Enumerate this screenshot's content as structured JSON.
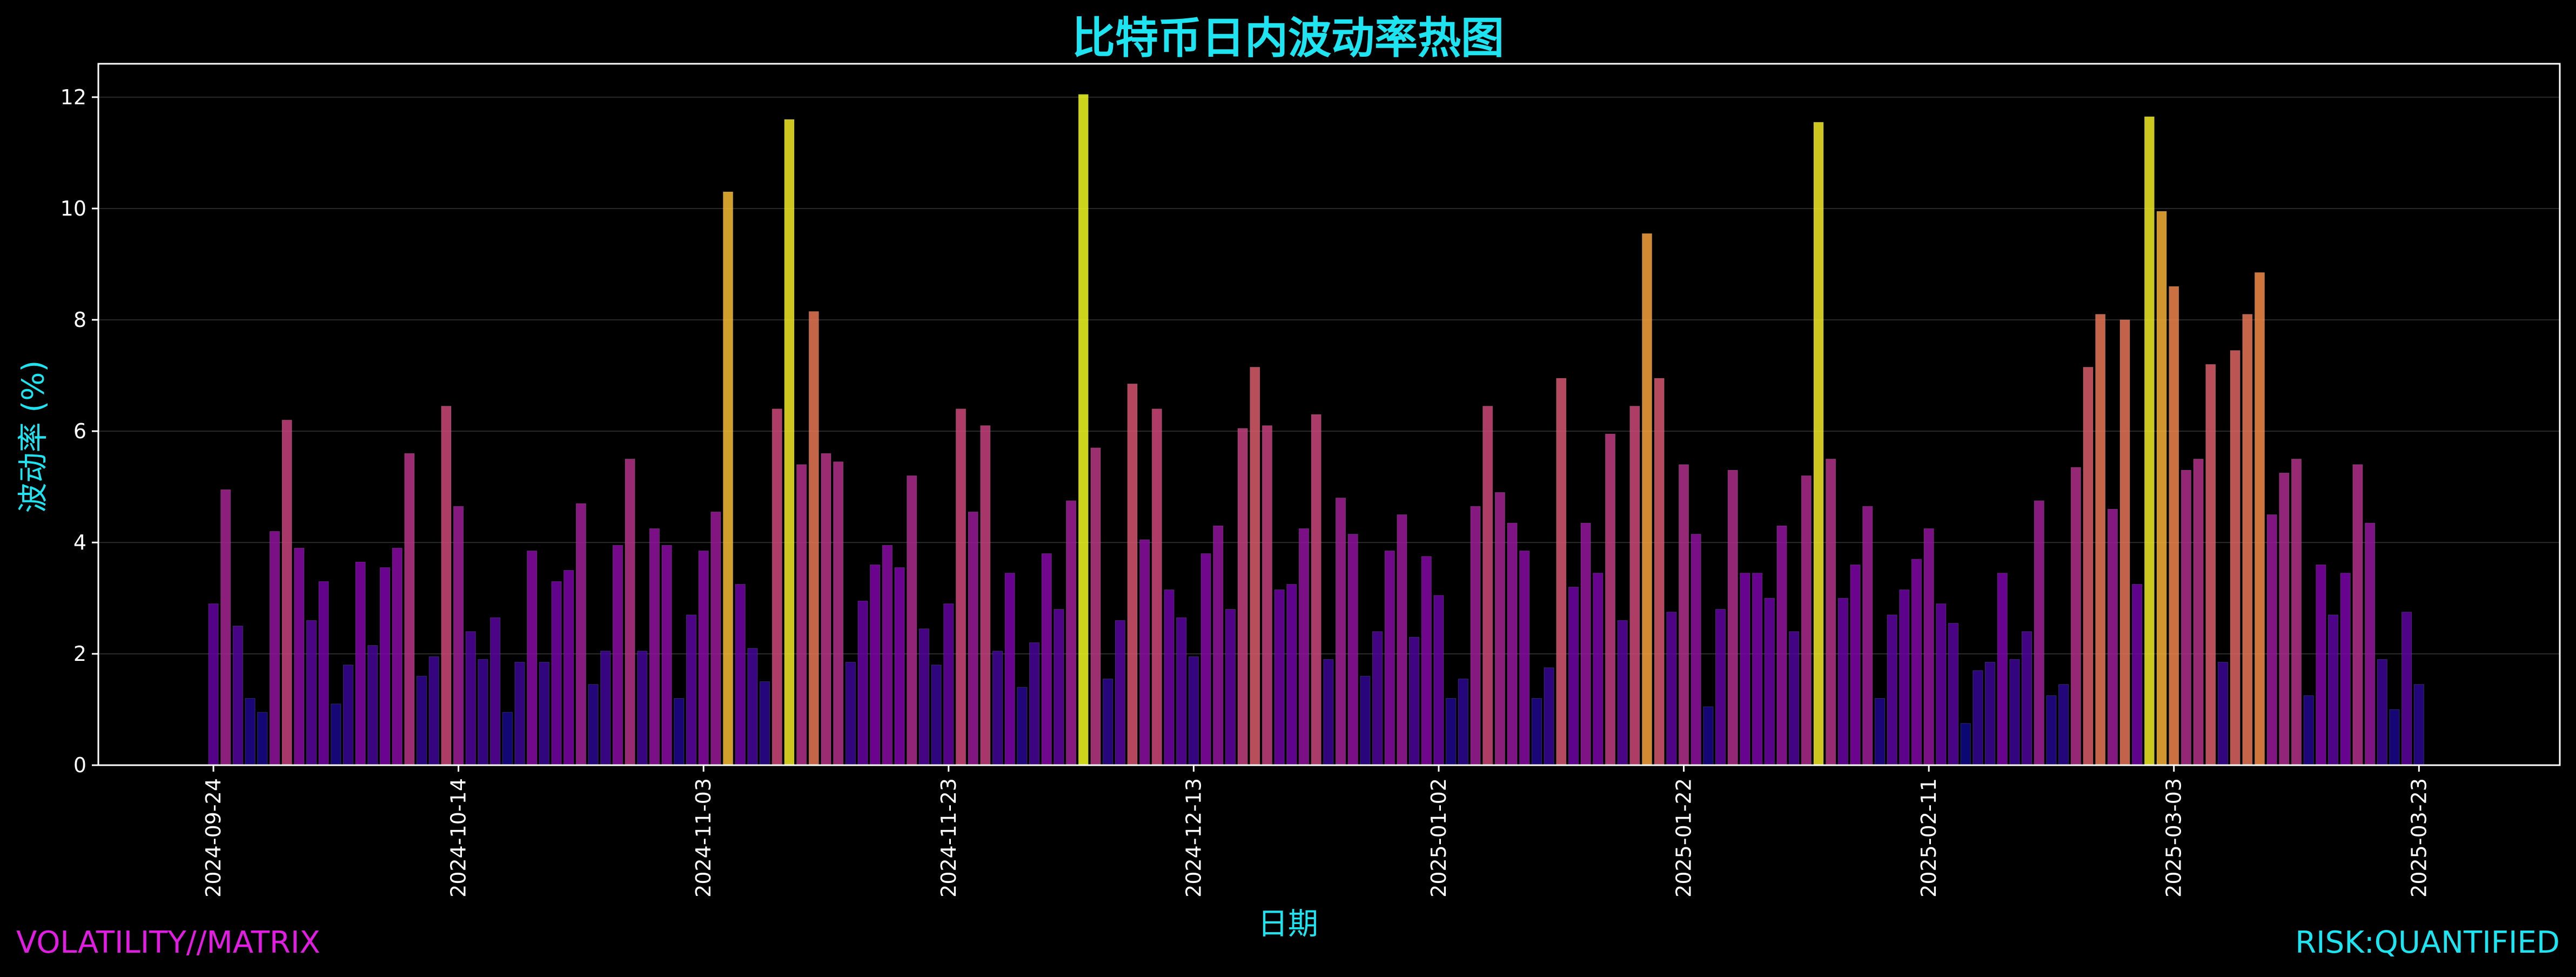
{
  "chart_data": {
    "type": "bar",
    "title": "比特币日内波动率热图",
    "xlabel": "日期",
    "ylabel": "波动率 (%)",
    "ylim": [
      0,
      12.6
    ],
    "yticks": [
      0,
      2,
      4,
      6,
      8,
      10,
      12
    ],
    "xtick_labels": [
      "2024-09-24",
      "2024-10-14",
      "2024-11-03",
      "2024-11-23",
      "2024-12-13",
      "2025-01-02",
      "2025-01-22",
      "2025-02-11",
      "2025-03-03",
      "2025-03-23"
    ],
    "x_start": "2024-09-24",
    "x_end": "2025-03-24",
    "grid": true,
    "colormap": "plasma",
    "categories": [
      "2024-09-24",
      "2024-09-25",
      "2024-09-26",
      "2024-09-27",
      "2024-09-28",
      "2024-09-29",
      "2024-09-30",
      "2024-10-01",
      "2024-10-02",
      "2024-10-03",
      "2024-10-04",
      "2024-10-05",
      "2024-10-06",
      "2024-10-07",
      "2024-10-08",
      "2024-10-09",
      "2024-10-10",
      "2024-10-11",
      "2024-10-12",
      "2024-10-13",
      "2024-10-14",
      "2024-10-15",
      "2024-10-16",
      "2024-10-17",
      "2024-10-18",
      "2024-10-19",
      "2024-10-20",
      "2024-10-21",
      "2024-10-22",
      "2024-10-23",
      "2024-10-24",
      "2024-10-25",
      "2024-10-26",
      "2024-10-27",
      "2024-10-28",
      "2024-10-29",
      "2024-10-30",
      "2024-10-31",
      "2024-11-01",
      "2024-11-02",
      "2024-11-03",
      "2024-11-04",
      "2024-11-05",
      "2024-11-06",
      "2024-11-07",
      "2024-11-08",
      "2024-11-09",
      "2024-11-10",
      "2024-11-11",
      "2024-11-12",
      "2024-11-13",
      "2024-11-14",
      "2024-11-15",
      "2024-11-16",
      "2024-11-17",
      "2024-11-18",
      "2024-11-19",
      "2024-11-20",
      "2024-11-21",
      "2024-11-22",
      "2024-11-23",
      "2024-11-24",
      "2024-11-25",
      "2024-11-26",
      "2024-11-27",
      "2024-11-28",
      "2024-11-29",
      "2024-11-30",
      "2024-12-01",
      "2024-12-02",
      "2024-12-03",
      "2024-12-04",
      "2024-12-05",
      "2024-12-06",
      "2024-12-07",
      "2024-12-08",
      "2024-12-09",
      "2024-12-10",
      "2024-12-11",
      "2024-12-12",
      "2024-12-13",
      "2024-12-14",
      "2024-12-15",
      "2024-12-16",
      "2024-12-17",
      "2024-12-18",
      "2024-12-19",
      "2024-12-20",
      "2024-12-21",
      "2024-12-22",
      "2024-12-23",
      "2024-12-24",
      "2024-12-25",
      "2024-12-26",
      "2024-12-27",
      "2024-12-28",
      "2024-12-29",
      "2024-12-30",
      "2024-12-31",
      "2025-01-01",
      "2025-01-02",
      "2025-01-03",
      "2025-01-04",
      "2025-01-05",
      "2025-01-06",
      "2025-01-07",
      "2025-01-08",
      "2025-01-09",
      "2025-01-10",
      "2025-01-11",
      "2025-01-12",
      "2025-01-13",
      "2025-01-14",
      "2025-01-15",
      "2025-01-16",
      "2025-01-17",
      "2025-01-18",
      "2025-01-19",
      "2025-01-20",
      "2025-01-21",
      "2025-01-22",
      "2025-01-23",
      "2025-01-24",
      "2025-01-25",
      "2025-01-26",
      "2025-01-27",
      "2025-01-28",
      "2025-01-29",
      "2025-01-30",
      "2025-01-31",
      "2025-02-01",
      "2025-02-02",
      "2025-02-03",
      "2025-02-04",
      "2025-02-05",
      "2025-02-06",
      "2025-02-07",
      "2025-02-08",
      "2025-02-09",
      "2025-02-10",
      "2025-02-11",
      "2025-02-12",
      "2025-02-13",
      "2025-02-14",
      "2025-02-15",
      "2025-02-16",
      "2025-02-17",
      "2025-02-18",
      "2025-02-19",
      "2025-02-20",
      "2025-02-21",
      "2025-02-22",
      "2025-02-23",
      "2025-02-24",
      "2025-02-25",
      "2025-02-26",
      "2025-02-27",
      "2025-02-28",
      "2025-03-01",
      "2025-03-02",
      "2025-03-03",
      "2025-03-04",
      "2025-03-05",
      "2025-03-06",
      "2025-03-07",
      "2025-03-08",
      "2025-03-09",
      "2025-03-10",
      "2025-03-11",
      "2025-03-12",
      "2025-03-13",
      "2025-03-14",
      "2025-03-15",
      "2025-03-16",
      "2025-03-17",
      "2025-03-18",
      "2025-03-19",
      "2025-03-20",
      "2025-03-21",
      "2025-03-22",
      "2025-03-23"
    ],
    "values": [
      2.9,
      4.95,
      2.5,
      1.2,
      0.95,
      4.2,
      6.2,
      3.9,
      2.6,
      3.3,
      1.1,
      1.8,
      3.65,
      2.15,
      3.55,
      3.9,
      5.6,
      1.6,
      1.95,
      6.45,
      4.65,
      2.4,
      1.9,
      2.65,
      0.95,
      1.85,
      3.85,
      1.85,
      3.3,
      3.5,
      4.7,
      1.45,
      2.05,
      3.95,
      5.5,
      2.05,
      4.25,
      3.95,
      1.2,
      2.7,
      3.85,
      4.55,
      10.3,
      3.25,
      2.1,
      1.5,
      6.4,
      11.6,
      5.4,
      8.15,
      5.6,
      5.45,
      1.85,
      2.95,
      3.6,
      3.95,
      3.55,
      5.2,
      2.45,
      1.8,
      2.9,
      6.4,
      4.55,
      6.1,
      2.05,
      3.45,
      1.4,
      2.2,
      3.8,
      2.8,
      4.75,
      12.05,
      5.7,
      1.55,
      2.6,
      6.85,
      4.05,
      6.4,
      3.15,
      2.65,
      1.95,
      3.8,
      4.3,
      2.8,
      6.05,
      7.15,
      6.1,
      3.15,
      3.25,
      4.25,
      6.3,
      1.9,
      4.8,
      4.15,
      1.6,
      2.4,
      3.85,
      4.5,
      2.3,
      3.75,
      3.05,
      1.2,
      1.55,
      4.65,
      6.45,
      4.9,
      4.35,
      3.85,
      1.2,
      1.75,
      6.95,
      3.2,
      4.35,
      3.45,
      5.95,
      2.6,
      6.45,
      9.55,
      6.95,
      2.75,
      5.4,
      4.15,
      1.05,
      2.8,
      5.3,
      3.45,
      3.45,
      3.0,
      4.3,
      2.4,
      5.2,
      11.55,
      5.5,
      3.0,
      3.6,
      4.65,
      1.2,
      2.7,
      3.15,
      3.7,
      4.25,
      2.9,
      2.55,
      0.75,
      1.7,
      1.85,
      3.45,
      1.9,
      2.4,
      4.75,
      1.25,
      1.45,
      5.35,
      7.15,
      8.1,
      4.6,
      8.0,
      3.25,
      11.65,
      9.95,
      8.6,
      5.3,
      5.5,
      7.2,
      1.85,
      7.45,
      8.1,
      8.85,
      4.5,
      5.25,
      5.5,
      1.25,
      3.6,
      2.7,
      3.45,
      5.4,
      4.35,
      1.9,
      1.0,
      2.75,
      1.45
    ]
  },
  "footer": {
    "left_text": "VOLATILITY//MATRIX",
    "right_text": "RISK:QUANTIFIED"
  },
  "colors": {
    "background": "#000000",
    "accent_cyan": "#1ee3f0",
    "accent_magenta": "#e21de2",
    "axis": "#ffffff"
  }
}
